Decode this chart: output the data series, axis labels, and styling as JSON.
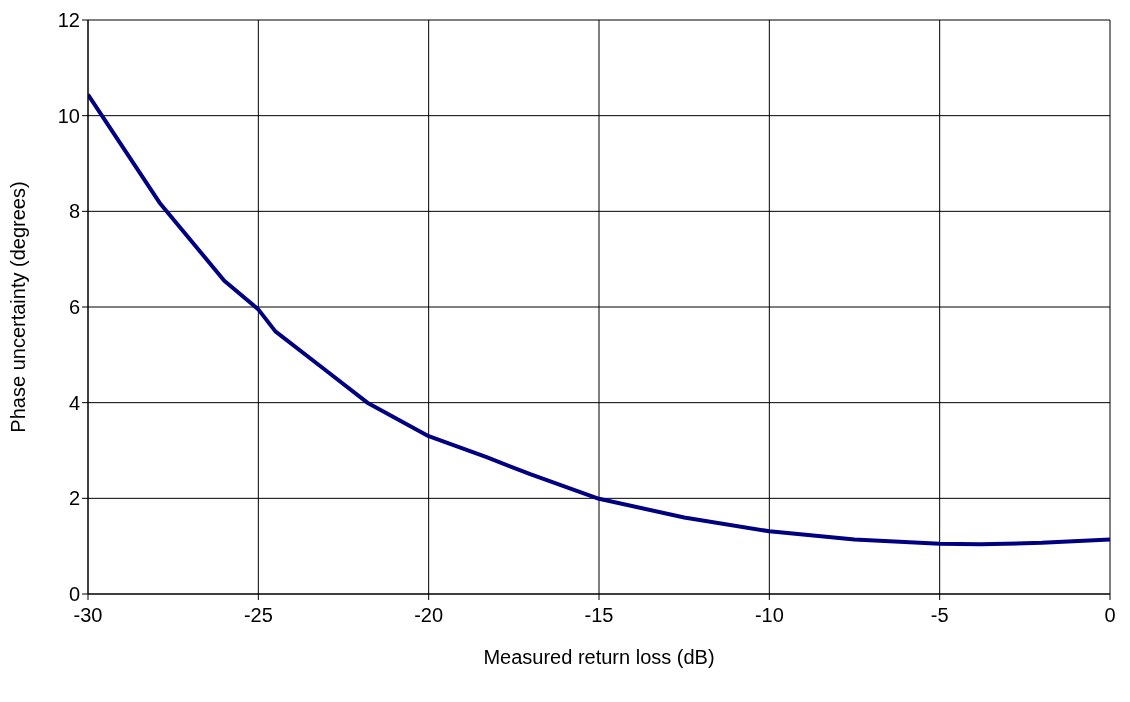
{
  "chart_data": {
    "type": "line",
    "xlabel": "Measured return loss (dB)",
    "ylabel": "Phase uncertainty (degrees)",
    "xlim": [
      -30,
      0
    ],
    "xticks": [
      -30,
      -25,
      -20,
      -15,
      -10,
      -5,
      0
    ],
    "ylim": [
      0,
      12
    ],
    "yticks": [
      0,
      2,
      4,
      6,
      8,
      10,
      12
    ],
    "grid": true,
    "marker": "none",
    "line_style": "solid",
    "series": [
      {
        "color": "#000080",
        "x": [
          -30,
          -27.9,
          -26,
          -25,
          -24.5,
          -23.1,
          -21.8,
          -20.9,
          -20,
          -18.3,
          -17,
          -15,
          -12.5,
          -10,
          -7.5,
          -5,
          -3.8,
          -2,
          0
        ],
        "values": [
          10.44,
          8.18,
          6.55,
          5.95,
          5.49,
          4.72,
          4.0,
          3.65,
          3.3,
          2.86,
          2.5,
          1.99,
          1.6,
          1.31,
          1.14,
          1.05,
          1.04,
          1.07,
          1.14
        ]
      }
    ]
  }
}
